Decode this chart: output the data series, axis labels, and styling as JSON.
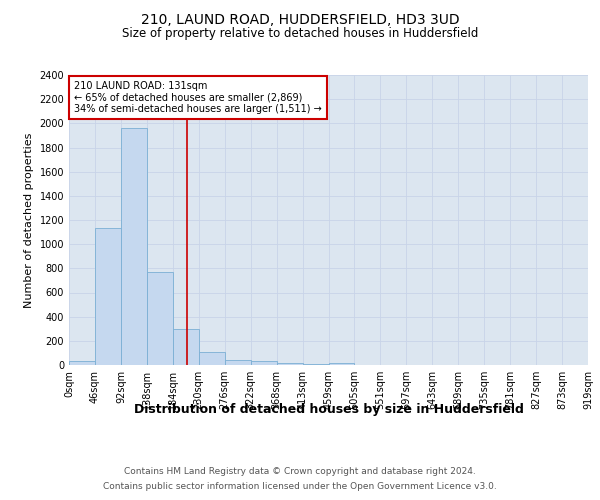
{
  "title": "210, LAUND ROAD, HUDDERSFIELD, HD3 3UD",
  "subtitle": "Size of property relative to detached houses in Huddersfield",
  "xlabel": "Distribution of detached houses by size in Huddersfield",
  "ylabel": "Number of detached properties",
  "bar_values": [
    30,
    1130,
    1960,
    770,
    300,
    110,
    45,
    30,
    20,
    10,
    20,
    0,
    0,
    0,
    0,
    0,
    0,
    0,
    0,
    0
  ],
  "bar_labels": [
    "0sqm",
    "46sqm",
    "92sqm",
    "138sqm",
    "184sqm",
    "230sqm",
    "276sqm",
    "322sqm",
    "368sqm",
    "413sqm",
    "459sqm",
    "505sqm",
    "551sqm",
    "597sqm",
    "643sqm",
    "689sqm",
    "735sqm",
    "781sqm",
    "827sqm",
    "873sqm",
    "919sqm"
  ],
  "bar_color": "#c5d8ef",
  "bar_edge_color": "#7aafd4",
  "marker_line_color": "#cc0000",
  "annotation_line1": "210 LAUND ROAD: 131sqm",
  "annotation_line2": "← 65% of detached houses are smaller (2,869)",
  "annotation_line3": "34% of semi-detached houses are larger (1,511) →",
  "annotation_box_color": "#ffffff",
  "annotation_box_edge": "#cc0000",
  "ylim": [
    0,
    2400
  ],
  "yticks": [
    0,
    200,
    400,
    600,
    800,
    1000,
    1200,
    1400,
    1600,
    1800,
    2000,
    2200,
    2400
  ],
  "grid_color": "#c8d4e8",
  "bg_color": "#dce6f0",
  "footer1": "Contains HM Land Registry data © Crown copyright and database right 2024.",
  "footer2": "Contains public sector information licensed under the Open Government Licence v3.0.",
  "title_fontsize": 10,
  "subtitle_fontsize": 8.5,
  "xlabel_fontsize": 9,
  "ylabel_fontsize": 8,
  "tick_fontsize": 7,
  "footer_fontsize": 6.5,
  "annotation_fontsize": 7
}
